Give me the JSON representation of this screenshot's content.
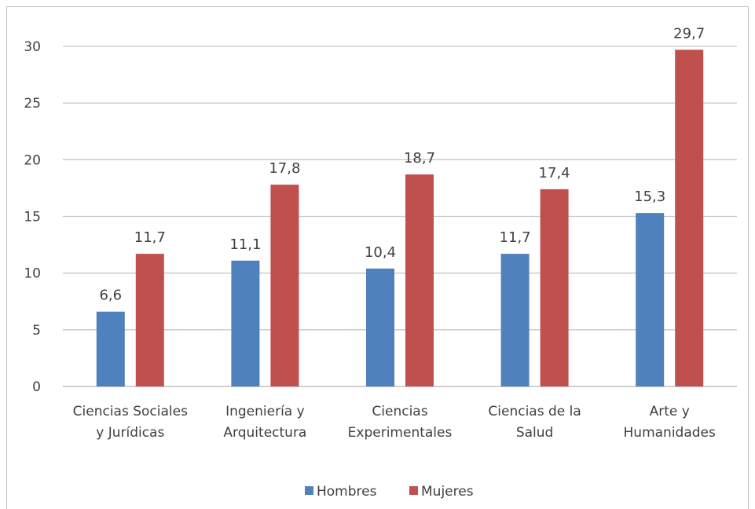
{
  "chart_data": {
    "type": "bar",
    "categories": [
      [
        "Ciencias Sociales",
        "y Jurídicas"
      ],
      [
        "Ingeniería  y",
        "Arquitectura"
      ],
      [
        "Ciencias",
        "Experimentales"
      ],
      [
        "Ciencias de la",
        "Salud"
      ],
      [
        "Arte y",
        "Humanidades"
      ]
    ],
    "series": [
      {
        "name": "Hombres",
        "color": "#4f81bd",
        "values": [
          6.6,
          11.1,
          10.4,
          11.7,
          15.3
        ],
        "labels": [
          "6,6",
          "11,1",
          "10,4",
          "11,7",
          "15,3"
        ]
      },
      {
        "name": "Mujeres",
        "color": "#c0504d",
        "values": [
          11.7,
          17.8,
          18.7,
          17.4,
          29.7
        ],
        "labels": [
          "11,7",
          "17,8",
          "18,7",
          "17,4",
          "29,7"
        ]
      }
    ],
    "yticks": [
      0,
      5,
      10,
      15,
      20,
      25,
      30
    ],
    "ylim": [
      0,
      30
    ],
    "grid": true,
    "legend_position": "bottom"
  }
}
